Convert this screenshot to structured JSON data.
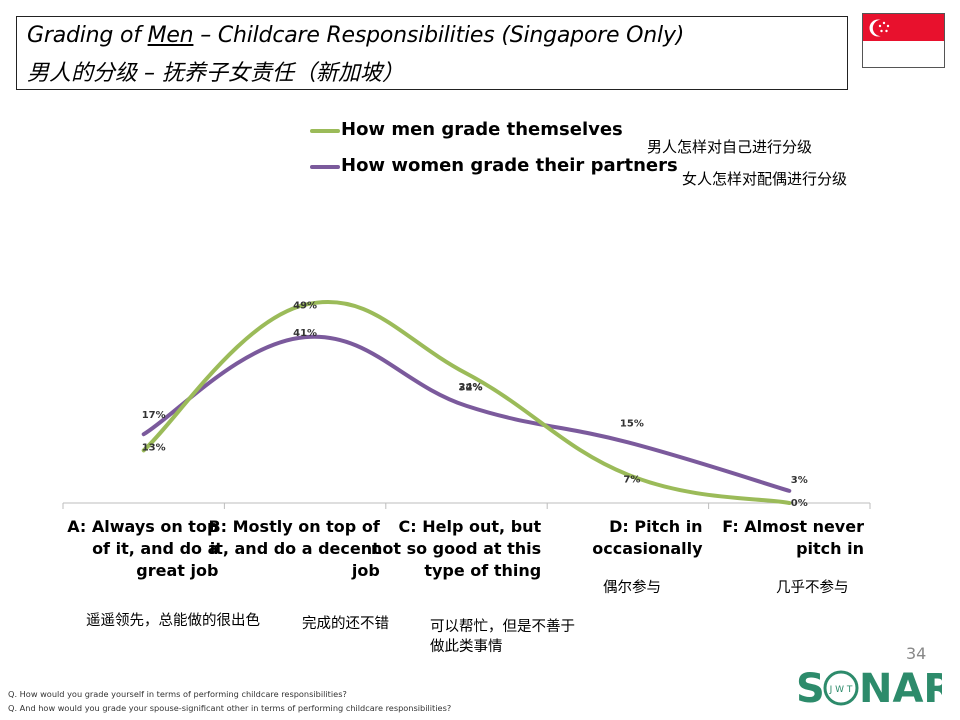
{
  "title": {
    "en_prefix": "Grading of ",
    "en_underlined": "Men",
    "en_suffix": " – Childcare Responsibilities (Singapore Only)",
    "zh": "男人的分级 – 抚养子女责任（新加坡）"
  },
  "legend": [
    {
      "name": "How men grade themselves",
      "zh": "男人怎样对自己进行分级",
      "color": "#9bbb59"
    },
    {
      "name": "How women grade their partners",
      "zh": "女人怎样对配偶进行分级",
      "color": "#7b5a9c"
    }
  ],
  "chart_data": {
    "type": "line",
    "smooth": true,
    "categories": [
      "A: Always on top of it, and do a great job",
      "B: Mostly on top of it, and do a decent job",
      "C: Help out, but not so good at this type of thing",
      "D: Pitch in occasionally",
      "F: Almost never pitch in"
    ],
    "category_lines": [
      [
        "A: Always on top",
        "of it, and do a",
        "great job"
      ],
      [
        "B: Mostly on top of",
        "it, and do a decent",
        "job"
      ],
      [
        "C: Help out, but",
        "not so good at this",
        "type of thing"
      ],
      [
        "D: Pitch in",
        "occasionally"
      ],
      [
        "F: Almost never",
        "pitch in"
      ]
    ],
    "category_zh": [
      "遥遥领先，总能做的很出色",
      "完成的还不错",
      "可以帮忙，但是不善于做此类事情",
      "偶尔参与",
      "几乎不参与"
    ],
    "series": [
      {
        "name": "How men grade themselves",
        "values": [
          13,
          49,
          32,
          7,
          0
        ],
        "labels": [
          "13%",
          "49%",
          "32%",
          "7%",
          "0%"
        ]
      },
      {
        "name": "How women grade their partners",
        "values": [
          17,
          41,
          24,
          15,
          3
        ],
        "labels": [
          "17%",
          "41%",
          "24%",
          "15%",
          "3%"
        ]
      }
    ],
    "ylim": [
      0,
      65
    ],
    "xlabel": "",
    "ylabel": "",
    "grid": false
  },
  "page_number": "34",
  "footnotes": [
    "Q. How would you grade yourself in terms of performing childcare responsibilities?",
    "Q. And how would you grade your spouse-significant other in terms of performing childcare responsibilities?"
  ],
  "logo": {
    "text_s": "S",
    "text_nar": "NAR",
    "ring_text": "J W T",
    "color": "#2d8b6b"
  }
}
